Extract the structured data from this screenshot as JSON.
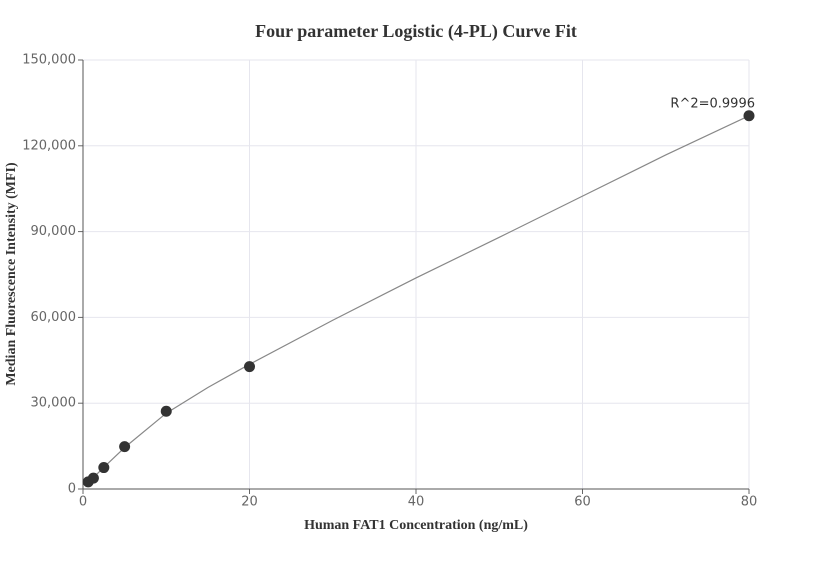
{
  "chart_data": {
    "type": "scatter",
    "title": "Four parameter Logistic (4-PL) Curve Fit",
    "x_label": "Human FAT1 Concentration (ng/mL)",
    "y_label": "Median Fluorescence Intensity (MFI)",
    "annotation": "R^2=0.9996",
    "xlim": [
      0,
      80
    ],
    "xticks": [
      0,
      20,
      40,
      60,
      80
    ],
    "ylim": [
      0,
      150000
    ],
    "yticks": [
      {
        "value": 0,
        "label": "0"
      },
      {
        "value": 30000,
        "label": "30,000"
      },
      {
        "value": 60000,
        "label": "60,000"
      },
      {
        "value": 90000,
        "label": "90,000"
      },
      {
        "value": 120000,
        "label": "120,000"
      },
      {
        "value": 150000,
        "label": "150,000"
      }
    ],
    "grid": true,
    "series": [
      {
        "type": "scatter",
        "color": "#333333",
        "x": [
          0.625,
          1.25,
          2.5,
          5,
          10,
          20,
          80
        ],
        "values": [
          2500,
          3800,
          7500,
          14800,
          27200,
          42800,
          130500
        ]
      },
      {
        "type": "line",
        "color": "#888888",
        "x": [
          0.625,
          1.25,
          2.5,
          5,
          10,
          15,
          20,
          30,
          40,
          50,
          60,
          70,
          80
        ],
        "values": [
          2200,
          4000,
          7600,
          14500,
          26500,
          35500,
          43600,
          59000,
          73800,
          88000,
          102400,
          116800,
          130500
        ]
      }
    ]
  }
}
